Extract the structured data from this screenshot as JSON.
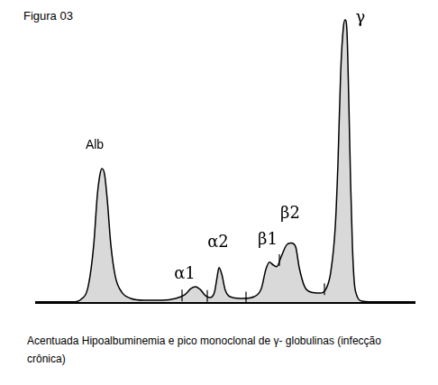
{
  "chart_data": {
    "type": "line",
    "title": "Figura 03",
    "caption": "Acentuada Hipoalbuminemia e pico monoclonal de γ- globulinas (infecção crônica)",
    "x": [
      0,
      40,
      50,
      58,
      64,
      68,
      71,
      73,
      76,
      79,
      83,
      88,
      95,
      105,
      120,
      140,
      155,
      165,
      172,
      177,
      182,
      188,
      193,
      198,
      201,
      203,
      206,
      210,
      218,
      230,
      242,
      250,
      255,
      259,
      263,
      267,
      272,
      278,
      283,
      288,
      292,
      298,
      305,
      315,
      322,
      327,
      332,
      335,
      338,
      341,
      343,
      345,
      347,
      349,
      351,
      353,
      356,
      362,
      380,
      420
    ],
    "values": [
      0,
      0,
      3,
      18,
      63,
      118,
      141,
      147,
      141,
      113,
      63,
      28,
      11,
      4,
      2,
      2,
      4,
      8,
      15,
      17,
      14,
      7,
      5,
      11,
      28,
      38,
      31,
      13,
      5,
      4,
      6,
      15,
      36,
      44,
      41,
      39,
      50,
      63,
      65,
      61,
      38,
      17,
      11,
      10,
      15,
      33,
      83,
      153,
      253,
      303,
      311,
      298,
      223,
      133,
      63,
      23,
      7,
      1,
      0,
      0
    ],
    "color": "#d9d9d9",
    "annotations": [
      {
        "text": "Alb",
        "x": 65,
        "y": 173
      },
      {
        "text": "α1",
        "x": 165,
        "y": 30
      },
      {
        "text": "α2",
        "x": 202,
        "y": 65
      },
      {
        "text": "β1",
        "x": 257,
        "y": 68
      },
      {
        "text": "β2",
        "x": 282,
        "y": 97
      },
      {
        "text": "γ",
        "x": 360,
        "y": 313
      }
    ],
    "fraction_boundaries": [
      162,
      190,
      233,
      270,
      320
    ],
    "xlim": [
      0,
      420
    ],
    "ylim": [
      0,
      320
    ],
    "xticks": [
      0,
      420
    ],
    "yticks": [
      0,
      320
    ],
    "tick_labels": false,
    "grid": false
  }
}
